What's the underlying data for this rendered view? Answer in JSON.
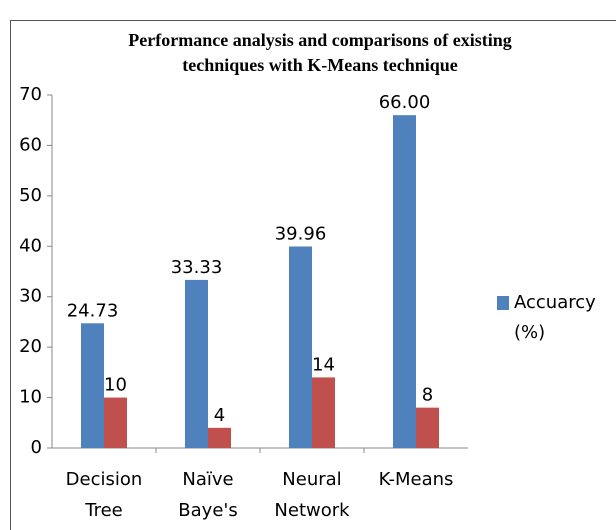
{
  "chart_data": {
    "type": "bar",
    "title": [
      "Performance analysis and comparisons of existing",
      "techniques with  K-Means technique"
    ],
    "categories": [
      "Decision Tree",
      "Naïve Baye's",
      "Neural Network",
      "K-Means"
    ],
    "series": [
      {
        "name": "Accuarcy (%)",
        "color": "#4f81bd",
        "values": [
          24.73,
          33.33,
          39.96,
          66
        ],
        "value_labels": [
          "24.73",
          "33.33",
          "39.96",
          "66.00"
        ]
      },
      {
        "color": "#c0504d",
        "values": [
          10,
          4,
          14,
          8
        ]
      }
    ],
    "ylim": [
      0,
      70
    ],
    "yticks": [
      0,
      10,
      20,
      30,
      40,
      50,
      60,
      70
    ],
    "grid": false,
    "legend": "right"
  }
}
